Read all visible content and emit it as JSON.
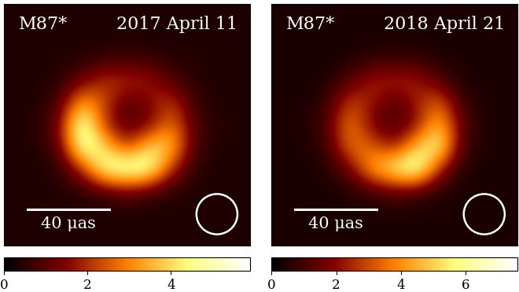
{
  "chart_data": [
    {
      "type": "heatmap",
      "source": "M87*",
      "date": "2017 April 11",
      "xlim": [
        -60,
        60
      ],
      "ylim": [
        -60,
        60
      ],
      "tick_labels": false,
      "scale_bar": 40,
      "scale_bar_label": "40 μas",
      "beam_diameter": 20,
      "colorbar_lim": [
        0,
        5.9
      ],
      "colorbar_ticks": [
        0,
        2,
        4
      ],
      "cells": [
        [
          0.35,
          0.35,
          0.35,
          0.35,
          0.35,
          0.35,
          0.35,
          0.35,
          0.35,
          0.35,
          0.35
        ],
        [
          0.35,
          0.35,
          0.35,
          0.35,
          0.35,
          0.35,
          0.35,
          0.35,
          0.35,
          0.35,
          0.35
        ],
        [
          0.35,
          0.35,
          0.4,
          0.44,
          0.58,
          0.7,
          0.58,
          0.43,
          0.4,
          0.35,
          0.35
        ],
        [
          0.35,
          0.35,
          0.46,
          1.2,
          2.1,
          2.0,
          1.8,
          0.9,
          0.44,
          0.35,
          0.35
        ],
        [
          0.35,
          0.4,
          0.8,
          3.5,
          2.3,
          0.9,
          1.5,
          2.2,
          0.7,
          0.4,
          0.35
        ],
        [
          0.35,
          0.45,
          1.3,
          5.6,
          1.9,
          0.9,
          1.2,
          3.0,
          0.9,
          0.45,
          0.35
        ],
        [
          0.35,
          0.4,
          1.0,
          5.3,
          4.1,
          1.9,
          4.1,
          3.9,
          0.8,
          0.4,
          0.35
        ],
        [
          0.35,
          0.35,
          0.5,
          2.0,
          5.0,
          5.5,
          5.2,
          2.0,
          0.5,
          0.35,
          0.35
        ],
        [
          0.35,
          0.35,
          0.4,
          0.5,
          0.9,
          1.3,
          0.9,
          0.5,
          0.4,
          0.35,
          0.35
        ],
        [
          0.35,
          0.35,
          0.35,
          0.35,
          0.35,
          0.35,
          0.35,
          0.35,
          0.35,
          0.35,
          0.35
        ],
        [
          0.35,
          0.35,
          0.35,
          0.35,
          0.35,
          0.35,
          0.35,
          0.35,
          0.35,
          0.35,
          0.35
        ]
      ]
    },
    {
      "type": "heatmap",
      "source": "M87*",
      "date": "2018 April 21",
      "xlim": [
        -60,
        60
      ],
      "ylim": [
        -60,
        60
      ],
      "tick_labels": false,
      "scale_bar": 40,
      "scale_bar_label": "40 μas",
      "beam_diameter": 20,
      "colorbar_lim": [
        0,
        7.6
      ],
      "colorbar_ticks": [
        0,
        2,
        4,
        6
      ],
      "cells": [
        [
          0.4,
          0.4,
          0.4,
          0.4,
          0.4,
          0.4,
          0.4,
          0.4,
          0.4,
          0.4,
          0.4
        ],
        [
          0.4,
          0.4,
          0.4,
          0.4,
          0.4,
          0.4,
          0.4,
          0.4,
          0.4,
          0.4,
          0.4
        ],
        [
          0.4,
          0.4,
          0.4,
          0.45,
          0.64,
          0.8,
          0.7,
          0.45,
          0.4,
          0.4,
          0.4
        ],
        [
          0.4,
          0.4,
          0.45,
          1.2,
          2.4,
          2.5,
          2.4,
          1.2,
          0.46,
          0.4,
          0.4
        ],
        [
          0.4,
          0.45,
          0.74,
          3.0,
          2.3,
          1.1,
          2.3,
          3.5,
          0.85,
          0.45,
          0.4
        ],
        [
          0.4,
          0.5,
          1.1,
          4.0,
          1.6,
          1.0,
          1.9,
          5.0,
          1.3,
          0.5,
          0.4
        ],
        [
          0.4,
          0.45,
          0.8,
          3.7,
          3.4,
          2.0,
          4.8,
          6.3,
          1.0,
          0.45,
          0.4
        ],
        [
          0.4,
          0.4,
          0.5,
          1.6,
          4.5,
          6.0,
          7.2,
          2.5,
          0.55,
          0.4,
          0.4
        ],
        [
          0.4,
          0.4,
          0.4,
          0.5,
          1.0,
          1.45,
          1.2,
          0.6,
          0.4,
          0.4,
          0.4
        ],
        [
          0.4,
          0.4,
          0.4,
          0.4,
          0.4,
          0.4,
          0.4,
          0.4,
          0.4,
          0.4,
          0.4
        ],
        [
          0.4,
          0.4,
          0.4,
          0.4,
          0.4,
          0.4,
          0.4,
          0.4,
          0.4,
          0.4,
          0.4
        ]
      ]
    }
  ]
}
